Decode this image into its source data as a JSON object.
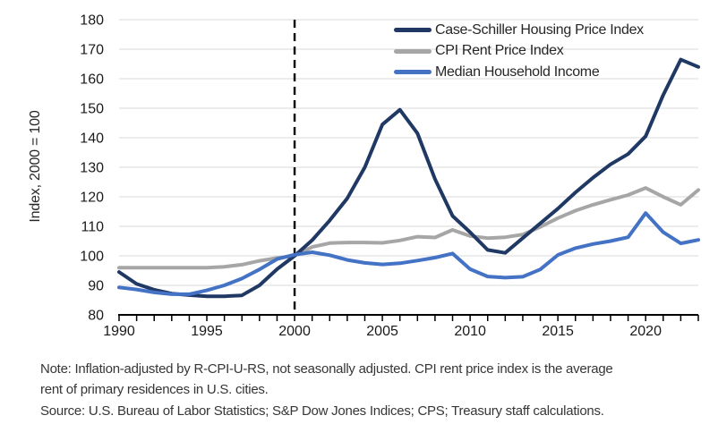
{
  "figure": {
    "note_lines": [
      "Note: Inflation-adjusted by R-CPI-U-RS, not seasonally adjusted. CPI rent price index is the average",
      "rent of primary residences in U.S. cities.",
      "Source: U.S. Bureau of Labor Statistics; S&P Dow Jones Indices; CPS; Treasury staff calculations."
    ]
  },
  "chart_data": {
    "type": "line",
    "title": "",
    "xlabel": "",
    "ylabel": "Index, 2000 = 100",
    "xlim": [
      1990,
      2023
    ],
    "ylim": [
      80,
      180
    ],
    "yticks": [
      80,
      90,
      100,
      110,
      120,
      130,
      140,
      150,
      160,
      170,
      180
    ],
    "xticks": [
      1990,
      1995,
      2000,
      2005,
      2010,
      2015,
      2020
    ],
    "minor_xtick_every_years": 1,
    "grid": "horizontal",
    "legend_position": "top-right-inside",
    "annotations": [
      {
        "type": "vline",
        "style": "dashed",
        "x": 2000,
        "color": "#000000"
      }
    ],
    "colors": {
      "gridline": "#d9d9d9",
      "axis": "#000000",
      "tick_label": "#1a1a1a"
    },
    "x": [
      1990,
      1991,
      1992,
      1993,
      1994,
      1995,
      1996,
      1997,
      1998,
      1999,
      2000,
      2001,
      2002,
      2003,
      2004,
      2005,
      2006,
      2007,
      2008,
      2009,
      2010,
      2011,
      2012,
      2013,
      2014,
      2015,
      2016,
      2017,
      2018,
      2019,
      2020,
      2021,
      2022,
      2023
    ],
    "series": [
      {
        "name": "Case-Schiller Housing Price Index",
        "color": "#1f3864",
        "width": 4,
        "values": [
          94.5,
          90.5,
          88.5,
          87.2,
          86.7,
          86.3,
          86.3,
          86.6,
          90,
          95.5,
          100,
          105.3,
          112,
          119.5,
          130,
          144.5,
          149.5,
          141.5,
          126,
          113.5,
          108,
          102,
          101,
          106,
          111,
          116,
          121.5,
          126.5,
          131,
          134.5,
          140.5,
          154.5,
          166.5,
          164
        ]
      },
      {
        "name": "CPI Rent Price Index",
        "color": "#a6a6a6",
        "width": 4,
        "values": [
          96,
          96,
          96,
          96,
          96,
          96,
          96.3,
          97,
          98.3,
          99.3,
          100,
          103,
          104.3,
          104.5,
          104.5,
          104.4,
          105.2,
          106.5,
          106.2,
          108.8,
          106.7,
          106,
          106.3,
          107.2,
          109.8,
          112.8,
          115.3,
          117.3,
          119,
          120.6,
          123,
          120,
          117.3,
          122.3
        ]
      },
      {
        "name": "Median Household Income",
        "color": "#4472c4",
        "width": 4,
        "values": [
          89.3,
          88.6,
          87.6,
          87,
          87,
          88.3,
          90,
          92.3,
          95.4,
          98.9,
          100.4,
          101.2,
          100.2,
          98.6,
          97.6,
          97.1,
          97.5,
          98.4,
          99.4,
          100.8,
          95.5,
          93,
          92.6,
          92.9,
          95.4,
          100.3,
          102.6,
          104,
          105,
          106.3,
          114.5,
          108,
          104.2,
          105.4
        ]
      }
    ]
  }
}
